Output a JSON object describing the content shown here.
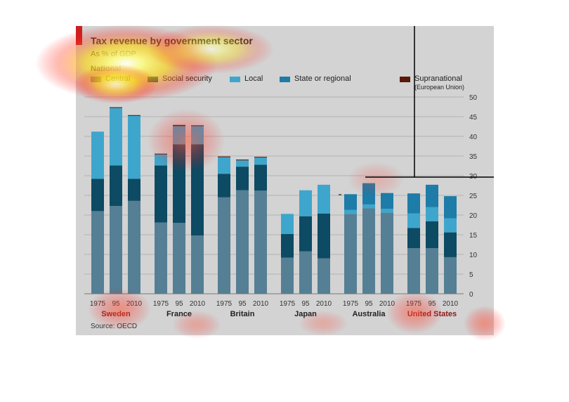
{
  "header": {
    "title": "Tax revenue by government sector",
    "subtitle": "As % of GDP",
    "legend_title": "National"
  },
  "source": "Source: OECD",
  "colors": {
    "card_bg": "#d3d3d3",
    "accent_red": "#cc1f1f",
    "grid": "#a9a9a9",
    "country_label": "#8b1a1a"
  },
  "chart_data": {
    "type": "bar",
    "stacked": true,
    "title": "Tax revenue by government sector",
    "subtitle": "As % of GDP",
    "ylim": [
      0,
      50
    ],
    "yticks": [
      0,
      5,
      10,
      15,
      20,
      25,
      30,
      35,
      40,
      45,
      50
    ],
    "y_axis_position": "right",
    "grid": true,
    "legend_placement": "top",
    "legend_group_title": "National",
    "series": [
      {
        "key": "central",
        "name": "Central",
        "color": "#557f94"
      },
      {
        "key": "social",
        "name": "Social security",
        "color": "#0d4a63"
      },
      {
        "key": "local",
        "name": "Local",
        "color": "#3ea6cc"
      },
      {
        "key": "state",
        "name": "State or regional",
        "color": "#1d7ca8"
      },
      {
        "key": "supra",
        "name": "Supranational",
        "note": "(European Union)",
        "color": "#5a1a0a"
      }
    ],
    "groups": [
      {
        "country": "Sweden",
        "country_color": "#8b1a1a",
        "bars": [
          {
            "label": "1975",
            "values": {
              "central": 21.0,
              "social": 8.2,
              "local": 12.0,
              "state": 0,
              "supra": 0
            }
          },
          {
            "label": "95",
            "values": {
              "central": 22.3,
              "social": 10.3,
              "local": 14.6,
              "state": 0,
              "supra": 0.2
            }
          },
          {
            "label": "2010",
            "values": {
              "central": 23.6,
              "social": 5.6,
              "local": 16.0,
              "state": 0,
              "supra": 0.2
            }
          }
        ]
      },
      {
        "country": "France",
        "country_color": "#222222",
        "bars": [
          {
            "label": "1975",
            "values": {
              "central": 18.1,
              "social": 14.5,
              "local": 2.8,
              "state": 0,
              "supra": 0.2
            }
          },
          {
            "label": "95",
            "values": {
              "central": 18.0,
              "social": 20.0,
              "local": 4.6,
              "state": 0,
              "supra": 0.3
            }
          },
          {
            "label": "2010",
            "values": {
              "central": 14.8,
              "social": 23.2,
              "local": 4.6,
              "state": 0,
              "supra": 0.2
            }
          }
        ]
      },
      {
        "country": "Britain",
        "country_color": "#222222",
        "bars": [
          {
            "label": "1975",
            "values": {
              "central": 24.5,
              "social": 6.0,
              "local": 4.2,
              "state": 0,
              "supra": 0.2
            }
          },
          {
            "label": "95",
            "values": {
              "central": 26.3,
              "social": 6.0,
              "local": 1.6,
              "state": 0,
              "supra": 0.2
            }
          },
          {
            "label": "2010",
            "values": {
              "central": 26.2,
              "social": 6.6,
              "local": 1.8,
              "state": 0,
              "supra": 0.2
            }
          }
        ]
      },
      {
        "country": "Japan",
        "country_color": "#222222",
        "bars": [
          {
            "label": "1975",
            "values": {
              "central": 9.2,
              "social": 6.0,
              "local": 5.1,
              "state": 0,
              "supra": 0
            }
          },
          {
            "label": "95",
            "values": {
              "central": 10.8,
              "social": 8.9,
              "local": 6.6,
              "state": 0,
              "supra": 0
            }
          },
          {
            "label": "2010",
            "values": {
              "central": 9.0,
              "social": 11.4,
              "local": 7.3,
              "state": 0,
              "supra": 0
            }
          }
        ]
      },
      {
        "country": "Australia",
        "country_color": "#222222",
        "bars": [
          {
            "label": "1975",
            "values": {
              "central": 20.3,
              "social": 0,
              "local": 1.0,
              "state": 4.0,
              "supra": 0
            }
          },
          {
            "label": "95",
            "values": {
              "central": 21.7,
              "social": 0,
              "local": 1.0,
              "state": 5.4,
              "supra": 0
            }
          },
          {
            "label": "2010",
            "values": {
              "central": 20.6,
              "social": 0,
              "local": 1.0,
              "state": 4.0,
              "supra": 0
            }
          }
        ]
      },
      {
        "country": "United States",
        "country_color": "#8b1a1a",
        "bars": [
          {
            "label": "1975",
            "values": {
              "central": 11.6,
              "social": 5.1,
              "local": 3.7,
              "state": 5.1,
              "supra": 0
            }
          },
          {
            "label": "95",
            "values": {
              "central": 11.6,
              "social": 6.8,
              "local": 3.6,
              "state": 5.7,
              "supra": 0
            }
          },
          {
            "label": "2010",
            "values": {
              "central": 9.3,
              "social": 6.3,
              "local": 3.6,
              "state": 5.6,
              "supra": 0
            }
          }
        ]
      }
    ]
  }
}
